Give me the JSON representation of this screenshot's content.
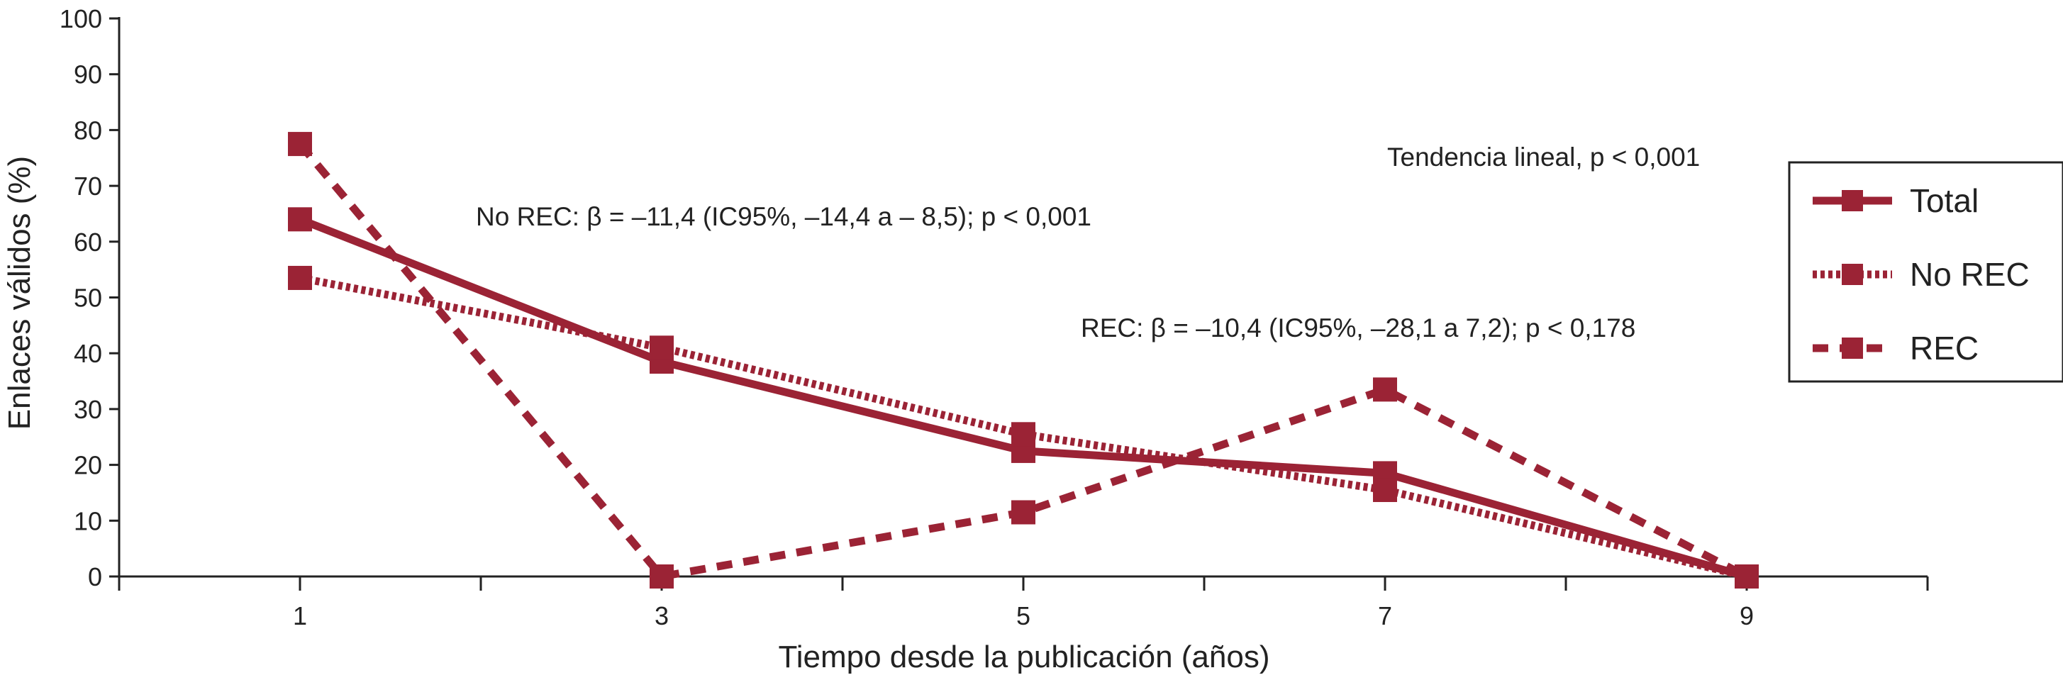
{
  "chart_data": {
    "type": "line",
    "xlabel": "Tiempo desde la publicación (años)",
    "ylabel": "Enlaces válidos (%)",
    "x": [
      1,
      3,
      5,
      7,
      9
    ],
    "x_ticks": [
      "1",
      "3",
      "5",
      "7",
      "9"
    ],
    "xlim": [
      0,
      10
    ],
    "ylim": [
      0,
      100
    ],
    "y_ticks": [
      "0",
      "10",
      "20",
      "30",
      "40",
      "50",
      "60",
      "70",
      "80",
      "90",
      "100"
    ],
    "grid": false,
    "legend_position": "right",
    "series": [
      {
        "name": "Total",
        "style": "solid",
        "values": [
          64,
          38.5,
          22.5,
          18.5,
          0
        ]
      },
      {
        "name": "No REC",
        "style": "dotted",
        "values": [
          53.5,
          41,
          25.5,
          15.5,
          0
        ]
      },
      {
        "name": "REC",
        "style": "dashed",
        "values": [
          77.5,
          0,
          11.5,
          33.5,
          0
        ]
      }
    ],
    "annotations": {
      "trend": "Tendencia lineal, p < 0,001",
      "no_rec": "No REC: β = –11,4 (IC95%, –14,4 a – 8,5); p < 0,001",
      "rec": "REC: β = –10,4 (IC95%, –28,1 a 7,2); p < 0,178"
    },
    "color": "#9b2335"
  }
}
